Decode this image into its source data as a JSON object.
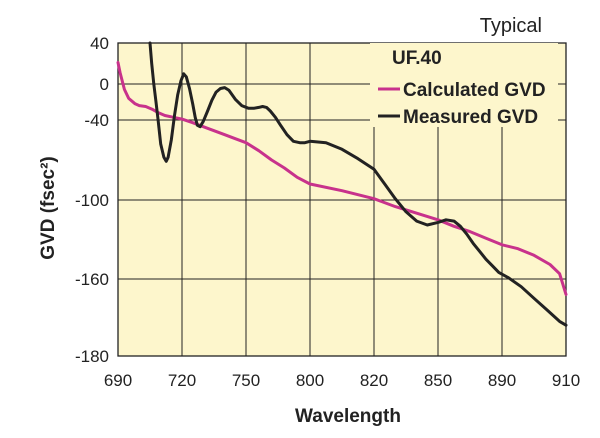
{
  "chart_data": {
    "type": "line",
    "note": "Typical",
    "xlabel": "Wavelength",
    "ylabel": "GVD (fsec²)",
    "x_ticks": [
      "690",
      "720",
      "750",
      "800",
      "820",
      "850",
      "890",
      "910"
    ],
    "y_ticks": [
      "40",
      "0",
      "-40",
      "-100",
      "-160",
      "-180"
    ],
    "grid": true,
    "legend": {
      "title": "UF.40",
      "placement": "top-right"
    },
    "series": [
      {
        "name": "Calculated GVD",
        "color": "#c8328c",
        "points": [
          [
            690,
            21
          ],
          [
            691,
            11
          ],
          [
            693,
            -6
          ],
          [
            695,
            -16
          ],
          [
            698,
            -22
          ],
          [
            700,
            -24
          ],
          [
            703,
            -25
          ],
          [
            706,
            -28
          ],
          [
            709,
            -32
          ],
          [
            712,
            -35
          ],
          [
            716,
            -37
          ],
          [
            720,
            -39
          ],
          [
            725,
            -42
          ],
          [
            730,
            -45
          ],
          [
            735,
            -48
          ],
          [
            740,
            -51
          ],
          [
            745,
            -54
          ],
          [
            750,
            -57
          ],
          [
            760,
            -63
          ],
          [
            770,
            -70
          ],
          [
            780,
            -76
          ],
          [
            790,
            -83
          ],
          [
            800,
            -88
          ],
          [
            810,
            -93
          ],
          [
            820,
            -99
          ],
          [
            830,
            -105
          ],
          [
            840,
            -110
          ],
          [
            850,
            -115
          ],
          [
            860,
            -120
          ],
          [
            870,
            -124
          ],
          [
            880,
            -129
          ],
          [
            890,
            -134
          ],
          [
            895,
            -137
          ],
          [
            900,
            -142
          ],
          [
            905,
            -149
          ],
          [
            908,
            -156
          ],
          [
            910,
            -164
          ]
        ]
      },
      {
        "name": "Measured GVD",
        "color": "#222222",
        "points": [
          [
            705,
            40
          ],
          [
            705.8,
            20
          ],
          [
            706.8,
            0
          ],
          [
            707.8,
            -20
          ],
          [
            708.8,
            -40
          ],
          [
            710,
            -58
          ],
          [
            711.5,
            -68
          ],
          [
            712.6,
            -71
          ],
          [
            713.5,
            -68
          ],
          [
            715,
            -55
          ],
          [
            716.5,
            -35
          ],
          [
            718,
            -12
          ],
          [
            719.5,
            3
          ],
          [
            720.8,
            10
          ],
          [
            722,
            7
          ],
          [
            723.5,
            -5
          ],
          [
            725,
            -22
          ],
          [
            726.2,
            -37
          ],
          [
            727.2,
            -44
          ],
          [
            728.5,
            -45
          ],
          [
            730,
            -41
          ],
          [
            732,
            -30
          ],
          [
            734,
            -18
          ],
          [
            736,
            -9
          ],
          [
            738,
            -5
          ],
          [
            740,
            -4
          ],
          [
            742,
            -7
          ],
          [
            745,
            -17
          ],
          [
            748,
            -24
          ],
          [
            752,
            -27
          ],
          [
            756,
            -27
          ],
          [
            760,
            -26
          ],
          [
            763,
            -25
          ],
          [
            766,
            -26
          ],
          [
            769,
            -30
          ],
          [
            773,
            -37
          ],
          [
            777,
            -44
          ],
          [
            782,
            -51
          ],
          [
            787,
            -56
          ],
          [
            792,
            -57
          ],
          [
            796,
            -57
          ],
          [
            800,
            -56
          ],
          [
            805,
            -57
          ],
          [
            810,
            -62
          ],
          [
            815,
            -69
          ],
          [
            820,
            -77
          ],
          [
            825,
            -88
          ],
          [
            830,
            -99
          ],
          [
            835,
            -109
          ],
          [
            840,
            -116
          ],
          [
            845,
            -119
          ],
          [
            850,
            -117
          ],
          [
            855,
            -115
          ],
          [
            860,
            -116
          ],
          [
            864,
            -120
          ],
          [
            868,
            -126
          ],
          [
            872,
            -133
          ],
          [
            876,
            -139
          ],
          [
            880,
            -145
          ],
          [
            884,
            -150
          ],
          [
            888,
            -155
          ],
          [
            892,
            -159
          ],
          [
            896,
            -162
          ],
          [
            900,
            -165
          ],
          [
            904,
            -168
          ],
          [
            908,
            -171
          ],
          [
            910,
            -172
          ]
        ]
      }
    ]
  }
}
